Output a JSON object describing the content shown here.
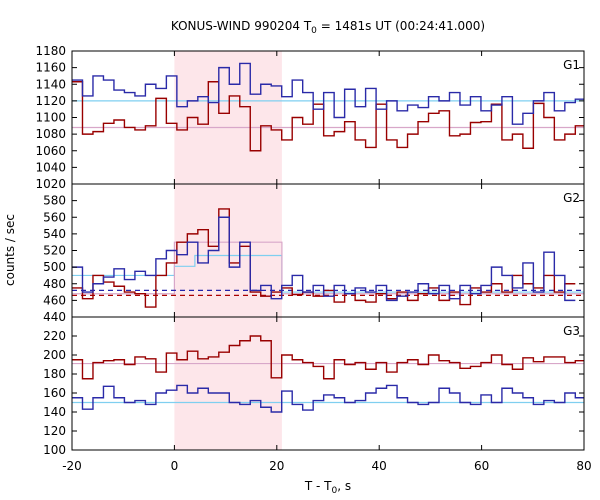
{
  "chart_data": {
    "type": "line",
    "title_prefix": "KONUS-WIND 990204 T",
    "title_sub": "0",
    "title_suffix": " = 1481s UT (00:24:41.000)",
    "xlabel_prefix": "T - T",
    "xlabel_sub": "0",
    "xlabel_suffix": ", s",
    "ylabel": "counts / sec",
    "xlim": [
      -20,
      80
    ],
    "xticks": [
      -20,
      0,
      20,
      40,
      60,
      80
    ],
    "xtick_labels": [
      "-20",
      "0",
      "20",
      "40",
      "60",
      "80"
    ],
    "highlight_interval": [
      0,
      21
    ],
    "colors": {
      "series_red": "#990000",
      "series_blue": "#2a2aa8",
      "bg_red": "#d8a7c9",
      "bg_blue": "#7fcff0",
      "highlight": "#fde6ea",
      "mean_red": "#aa0000",
      "mean_blue": "#2222aa"
    },
    "bin_width": 2.048,
    "panels": [
      {
        "name": "G1",
        "ylim": [
          1020,
          1180
        ],
        "yticks": [
          1020,
          1040,
          1060,
          1080,
          1100,
          1120,
          1140,
          1160,
          1180
        ],
        "ytick_labels": [
          "1020",
          "1040",
          "1060",
          "1080",
          "1100",
          "1120",
          "1140",
          "1160",
          "1180"
        ],
        "series": [
          {
            "color_key": "series_red",
            "start": -20,
            "values": [
              1143,
              1080,
              1083,
              1093,
              1097,
              1088,
              1085,
              1090,
              1123,
              1093,
              1085,
              1100,
              1092,
              1143,
              1105,
              1126,
              1113,
              1060,
              1090,
              1085,
              1073,
              1100,
              1092,
              1116,
              1078,
              1083,
              1095,
              1073,
              1064,
              1116,
              1073,
              1064,
              1080,
              1095,
              1105,
              1108,
              1078,
              1080,
              1094,
              1095,
              1116,
              1073,
              1080,
              1063,
              1117,
              1100,
              1073,
              1080,
              1090
            ]
          },
          {
            "color_key": "series_blue",
            "start": -20,
            "values": [
              1145,
              1126,
              1150,
              1145,
              1133,
              1130,
              1126,
              1140,
              1135,
              1150,
              1113,
              1120,
              1125,
              1118,
              1160,
              1140,
              1165,
              1128,
              1140,
              1138,
              1125,
              1145,
              1130,
              1110,
              1130,
              1100,
              1134,
              1113,
              1135,
              1110,
              1120,
              1108,
              1115,
              1112,
              1125,
              1120,
              1130,
              1115,
              1125,
              1108,
              1115,
              1125,
              1092,
              1105,
              1120,
              1130,
              1108,
              1118,
              1122
            ]
          }
        ],
        "backgrounds": [
          {
            "color_key": "bg_blue",
            "value": 1120
          },
          {
            "color_key": "bg_red",
            "value": 1088
          }
        ]
      },
      {
        "name": "G2",
        "ylim": [
          440,
          600
        ],
        "yticks": [
          440,
          460,
          480,
          500,
          520,
          540,
          560,
          580
        ],
        "ytick_labels": [
          "440",
          "460",
          "480",
          "500",
          "520",
          "540",
          "560",
          "580"
        ],
        "series": [
          {
            "color_key": "series_red",
            "start": -20,
            "values": [
              475,
              462,
              490,
              482,
              477,
              470,
              468,
              452,
              490,
              505,
              530,
              540,
              545,
              525,
              570,
              505,
              525,
              470,
              465,
              470,
              475,
              467,
              470,
              465,
              472,
              458,
              468,
              460,
              458,
              468,
              462,
              470,
              460,
              468,
              475,
              460,
              470,
              455,
              475,
              470,
              480,
              470,
              490,
              480,
              475,
              490,
              470,
              480
            ]
          },
          {
            "color_key": "series_blue",
            "start": -20,
            "values": [
              500,
              470,
              480,
              488,
              498,
              485,
              495,
              490,
              510,
              520,
              515,
              530,
              505,
              520,
              560,
              500,
              530,
              472,
              478,
              462,
              478,
              490,
              470,
              478,
              465,
              478,
              468,
              475,
              470,
              478,
              460,
              465,
              470,
              480,
              468,
              478,
              462,
              478,
              468,
              478,
              500,
              490,
              475,
              505,
              470,
              518,
              490,
              460
            ]
          }
        ],
        "backgrounds": [
          {
            "color_key": "bg_blue",
            "steps": [
              [
                -20,
                490
              ],
              [
                0,
                501
              ],
              [
                4,
                514
              ],
              [
                21,
                470
              ],
              [
                80,
                470
              ]
            ]
          },
          {
            "color_key": "bg_red",
            "steps": [
              [
                -20,
                468
              ],
              [
                0,
                530
              ],
              [
                21,
                468
              ],
              [
                80,
                468
              ]
            ]
          }
        ],
        "mean_lines": [
          {
            "color_key": "mean_blue",
            "value": 472
          },
          {
            "color_key": "mean_red",
            "value": 466
          }
        ]
      },
      {
        "name": "G3",
        "ylim": [
          100,
          240
        ],
        "yticks": [
          100,
          120,
          140,
          160,
          180,
          200,
          220
        ],
        "ytick_labels": [
          "100",
          "120",
          "140",
          "160",
          "180",
          "200",
          "220"
        ],
        "series": [
          {
            "color_key": "series_red",
            "start": -20,
            "values": [
              195,
              175,
              192,
              194,
              195,
              190,
              198,
              196,
              182,
              202,
              195,
              204,
              196,
              198,
              203,
              210,
              215,
              220,
              215,
              176,
              200,
              195,
              192,
              188,
              175,
              195,
              190,
              192,
              185,
              192,
              182,
              192,
              195,
              190,
              200,
              194,
              192,
              186,
              188,
              192,
              200,
              190,
              185,
              197,
              193,
              198,
              198,
              192,
              194
            ]
          },
          {
            "color_key": "series_blue",
            "start": -20,
            "values": [
              155,
              143,
              155,
              167,
              155,
              150,
              152,
              148,
              160,
              163,
              168,
              160,
              165,
              160,
              160,
              150,
              148,
              152,
              145,
              140,
              162,
              148,
              142,
              152,
              158,
              155,
              150,
              152,
              160,
              165,
              168,
              155,
              150,
              148,
              150,
              165,
              160,
              150,
              148,
              158,
              150,
              165,
              160,
              155,
              148,
              152,
              150,
              160,
              155
            ]
          }
        ],
        "backgrounds": [
          {
            "color_key": "bg_blue",
            "value": 150
          },
          {
            "color_key": "bg_red",
            "value": 191
          }
        ]
      }
    ]
  }
}
